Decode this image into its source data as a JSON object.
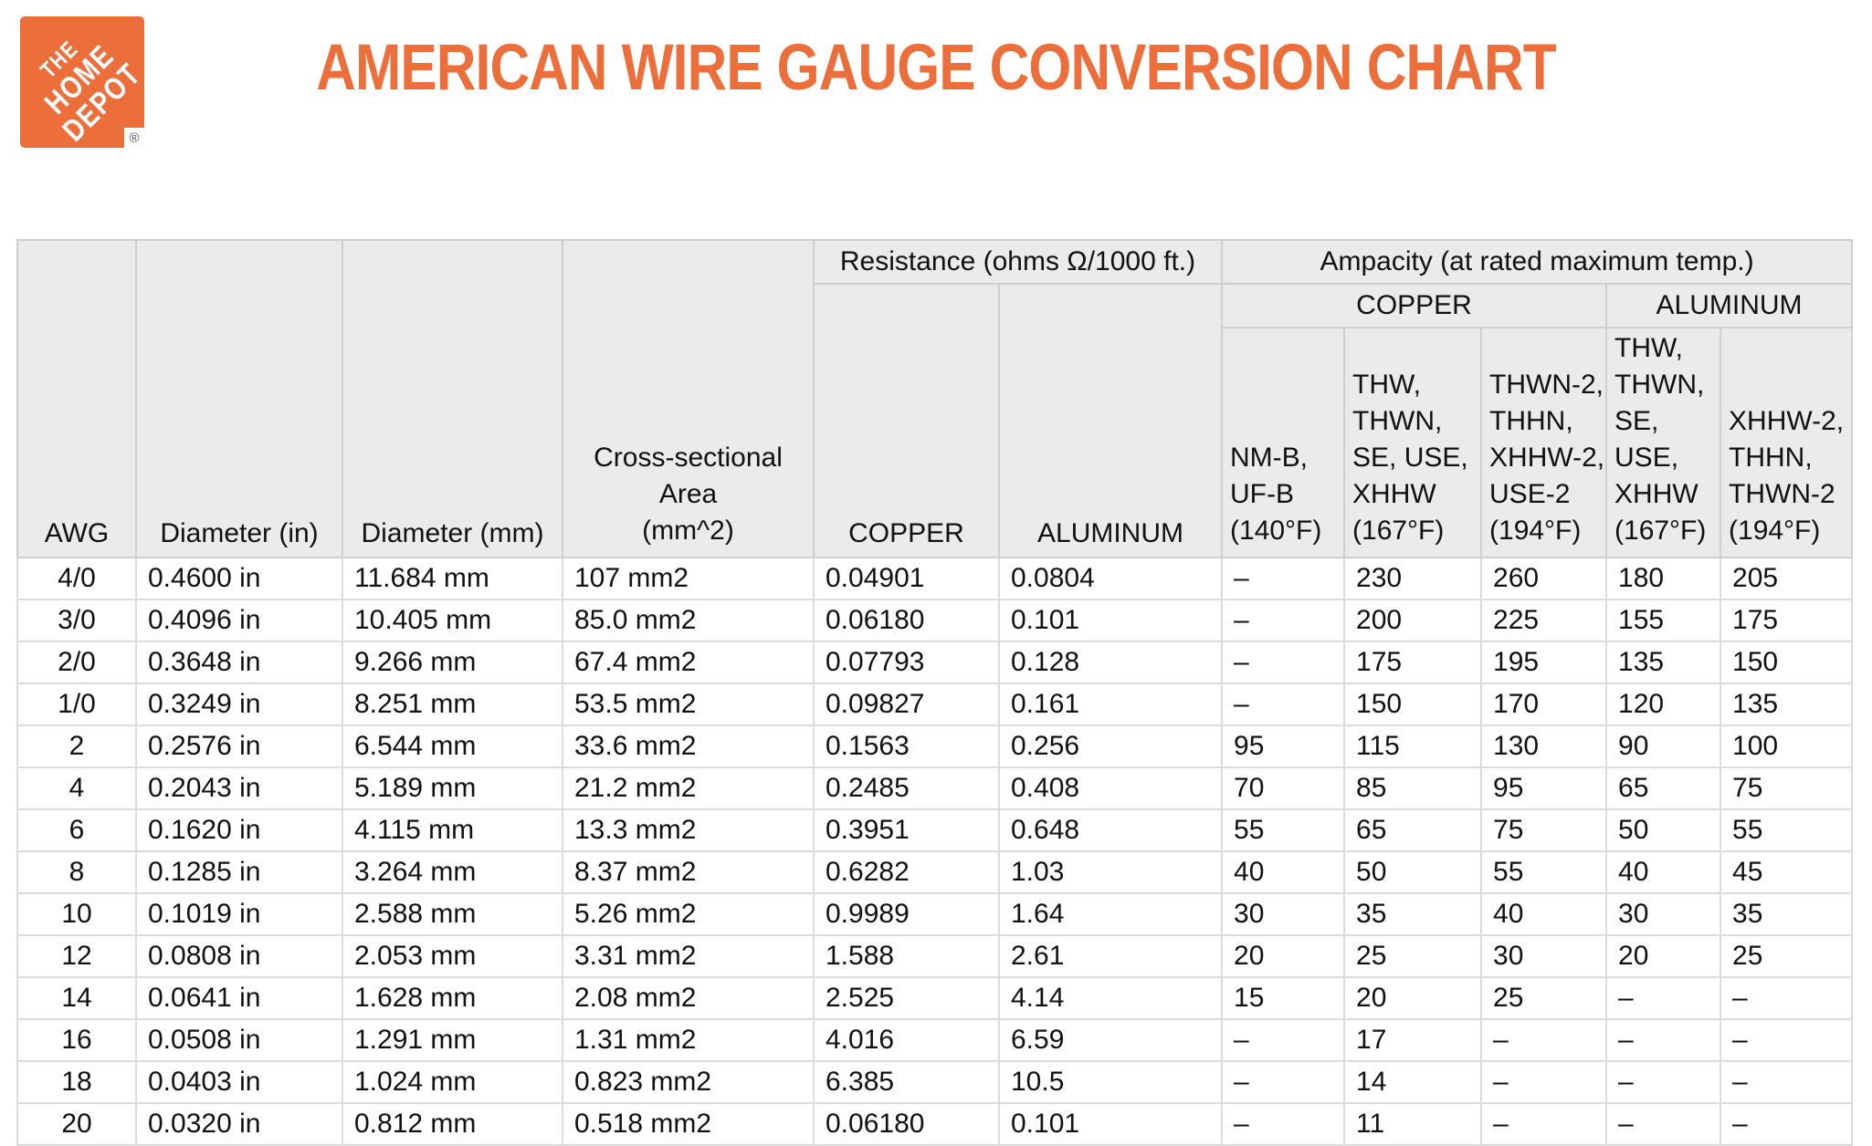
{
  "logo": {
    "word1": "THE",
    "word2": "HOME",
    "word3": "DEPOT",
    "registered": "®"
  },
  "page": {
    "title": "AMERICAN WIRE GAUGE CONVERSION CHART"
  },
  "colors": {
    "accent_orange": "#EC6E3B",
    "header_gray": "#EBEBEB",
    "grid_line": "#D6D6D6",
    "text": "#111111"
  },
  "table": {
    "group": {
      "resistance": "Resistance (ohms Ω/1000 ft.)",
      "ampacity": "Ampacity (at rated maximum temp.)",
      "copper_group": "COPPER",
      "aluminum_group": "ALUMINUM"
    },
    "cols": {
      "awg": "AWG",
      "dia_in": "Diameter (in)",
      "dia_mm": "Diameter (mm)",
      "area": [
        "Cross-sectional Area",
        "(mm^2)"
      ],
      "r_copper": "COPPER",
      "r_aluminum": "ALUMINUM",
      "amp_nmb": [
        "NM-B,",
        "UF-B",
        "(140°F)"
      ],
      "amp_thw_cu": [
        "THW,",
        "THWN,",
        "SE, USE,",
        "XHHW",
        "(167°F)"
      ],
      "amp_thwn2_cu": [
        "THWN-2,",
        "THHN,",
        "XHHW-2,",
        "USE-2",
        "(194°F)"
      ],
      "amp_thw_al": [
        "THW,",
        "THWN,",
        "SE, USE,",
        "XHHW",
        "(167°F)"
      ],
      "amp_xhhw2_al": [
        "XHHW-2,",
        "THHN,",
        "THWN-2",
        "(194°F)"
      ]
    },
    "col_keys": [
      "awg",
      "dia_in",
      "dia_mm",
      "area",
      "r_copper",
      "r_aluminum",
      "amp_nmb",
      "amp_thw_cu",
      "amp_thwn2_cu",
      "amp_thw_al",
      "amp_xhhw2_al"
    ],
    "rows": [
      [
        "4/0",
        "0.4600 in",
        "11.684 mm",
        "107 mm2",
        "0.04901",
        "0.0804",
        "–",
        "230",
        "260",
        "180",
        "205"
      ],
      [
        "3/0",
        "0.4096 in",
        "10.405 mm",
        "85.0 mm2",
        "0.06180",
        "0.101",
        "–",
        "200",
        "225",
        "155",
        "175"
      ],
      [
        "2/0",
        "0.3648 in",
        "9.266 mm",
        "67.4 mm2",
        "0.07793",
        "0.128",
        "–",
        "175",
        "195",
        "135",
        "150"
      ],
      [
        "1/0",
        "0.3249 in",
        "8.251 mm",
        "53.5 mm2",
        "0.09827",
        "0.161",
        "–",
        "150",
        "170",
        "120",
        "135"
      ],
      [
        "2",
        "0.2576 in",
        "6.544 mm",
        "33.6 mm2",
        "0.1563",
        "0.256",
        "95",
        "115",
        "130",
        "90",
        "100"
      ],
      [
        "4",
        "0.2043 in",
        "5.189 mm",
        "21.2 mm2",
        "0.2485",
        "0.408",
        "70",
        "85",
        "95",
        "65",
        "75"
      ],
      [
        "6",
        "0.1620 in",
        "4.115 mm",
        "13.3 mm2",
        "0.3951",
        "0.648",
        "55",
        "65",
        "75",
        "50",
        "55"
      ],
      [
        "8",
        "0.1285 in",
        "3.264 mm",
        "8.37 mm2",
        "0.6282",
        "1.03",
        "40",
        "50",
        "55",
        "40",
        "45"
      ],
      [
        "10",
        "0.1019 in",
        "2.588 mm",
        "5.26 mm2",
        "0.9989",
        "1.64",
        "30",
        "35",
        "40",
        "30",
        "35"
      ],
      [
        "12",
        "0.0808 in",
        "2.053 mm",
        "3.31 mm2",
        "1.588",
        "2.61",
        "20",
        "25",
        "30",
        "20",
        "25"
      ],
      [
        "14",
        "0.0641 in",
        "1.628 mm",
        "2.08 mm2",
        "2.525",
        "4.14",
        "15",
        "20",
        "25",
        "–",
        "–"
      ],
      [
        "16",
        "0.0508 in",
        "1.291 mm",
        "1.31 mm2",
        "4.016",
        "6.59",
        "–",
        "17",
        "–",
        "–",
        "–"
      ],
      [
        "18",
        "0.0403 in",
        "1.024 mm",
        "0.823 mm2",
        "6.385",
        "10.5",
        "–",
        "14",
        "–",
        "–",
        "–"
      ],
      [
        "20",
        "0.0320 in",
        "0.812 mm",
        "0.518 mm2",
        "0.06180",
        "0.101",
        "–",
        "11",
        "–",
        "–",
        "–"
      ]
    ]
  }
}
